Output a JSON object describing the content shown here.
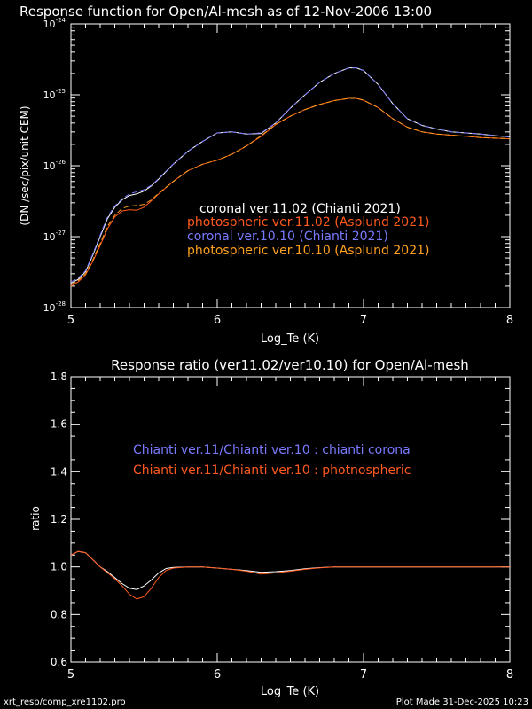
{
  "colors": {
    "background": "#000000",
    "axes": "#ffffff",
    "coronal_v11": "#ffffff",
    "photospheric_v11": "#ff5a1e",
    "coronal_v10": "#7a7aff",
    "photospheric_v10": "#ffa020",
    "ratio_corona": "#ffffff",
    "ratio_photo": "#ff5a1e"
  },
  "footer": {
    "left": "xrt_resp/comp_xre1102.pro",
    "right": "Plot Made 31-Dec-2025 10:23"
  },
  "chart_data": [
    {
      "type": "line",
      "title": "Response function for Open/Al-mesh as of 12-Nov-2006 13:00",
      "xlabel": "Log_Te (K)",
      "ylabel": "(DN /sec/pix/unit CEM)",
      "xlim": [
        5,
        8
      ],
      "ylim": [
        1e-28,
        1e-24
      ],
      "yscale": "log",
      "xticks": [
        "5",
        "6",
        "7",
        "8"
      ],
      "yticks": [
        {
          "base": "10",
          "exp": "-28"
        },
        {
          "base": "10",
          "exp": "-27"
        },
        {
          "base": "10",
          "exp": "-26"
        },
        {
          "base": "10",
          "exp": "-25"
        },
        {
          "base": "10",
          "exp": "-24"
        }
      ],
      "legend_placement": "center-right",
      "legend": [
        "coronal ver.11.02 (Chianti 2021)",
        "photospheric ver.11.02 (Asplund 2021)",
        "coronal ver.10.10 (Chianti 2021)",
        "photospheric ver.10.10 (Asplund 2021)"
      ],
      "series": [
        {
          "name": "coronal ver.11.02 (Chianti 2021)",
          "color": "#ffffff",
          "dash": "solid",
          "x": [
            5.0,
            5.05,
            5.1,
            5.15,
            5.2,
            5.25,
            5.3,
            5.35,
            5.4,
            5.45,
            5.5,
            5.55,
            5.6,
            5.7,
            5.8,
            5.9,
            6.0,
            6.1,
            6.2,
            6.3,
            6.4,
            6.5,
            6.6,
            6.7,
            6.8,
            6.9,
            6.95,
            7.0,
            7.1,
            7.2,
            7.3,
            7.4,
            7.5,
            7.6,
            7.7,
            7.8,
            7.9,
            8.0
          ],
          "y": [
            2.2e-28,
            2.5e-28,
            3.2e-28,
            5.5e-28,
            1e-27,
            1.8e-27,
            2.6e-27,
            3.3e-27,
            3.8e-27,
            4e-27,
            4.4e-27,
            5.2e-27,
            6.5e-27,
            1.05e-26,
            1.6e-26,
            2.2e-26,
            2.9e-26,
            3e-26,
            2.8e-26,
            2.85e-26,
            4e-26,
            6.5e-26,
            1e-25,
            1.5e-25,
            2e-25,
            2.4e-25,
            2.4e-25,
            2.2e-25,
            1.4e-25,
            7.5e-26,
            4.6e-26,
            3.7e-26,
            3.3e-26,
            3e-26,
            2.9e-26,
            2.8e-26,
            2.65e-26,
            2.55e-26
          ]
        },
        {
          "name": "photospheric ver.11.02 (Asplund 2021)",
          "color": "#ff5a1e",
          "dash": "solid",
          "x": [
            5.0,
            5.05,
            5.1,
            5.15,
            5.2,
            5.25,
            5.3,
            5.35,
            5.4,
            5.45,
            5.5,
            5.55,
            5.6,
            5.7,
            5.8,
            5.9,
            6.0,
            6.1,
            6.2,
            6.3,
            6.4,
            6.5,
            6.6,
            6.7,
            6.8,
            6.9,
            6.95,
            7.0,
            7.1,
            7.2,
            7.3,
            7.4,
            7.5,
            7.6,
            7.7,
            7.8,
            7.9,
            8.0
          ],
          "y": [
            2e-28,
            2.3e-28,
            2.9e-28,
            4.5e-28,
            7.5e-28,
            1.3e-27,
            1.9e-27,
            2.3e-27,
            2.4e-27,
            2.35e-27,
            2.6e-27,
            3.2e-27,
            4e-27,
            6e-27,
            8.5e-27,
            1.05e-26,
            1.2e-26,
            1.45e-26,
            1.9e-26,
            2.6e-26,
            3.8e-26,
            5e-26,
            6.2e-26,
            7.3e-26,
            8.3e-26,
            8.9e-26,
            8.9e-26,
            8.4e-26,
            6.6e-26,
            4.6e-26,
            3.5e-26,
            3e-26,
            2.8e-26,
            2.7e-26,
            2.6e-26,
            2.5e-26,
            2.45e-26,
            2.4e-26
          ]
        },
        {
          "name": "coronal ver.10.10 (Chianti 2021)",
          "color": "#7a7aff",
          "dash": "dashed",
          "x": [
            5.0,
            5.05,
            5.1,
            5.15,
            5.2,
            5.25,
            5.3,
            5.35,
            5.4,
            5.45,
            5.5,
            5.55,
            5.6,
            5.7,
            5.8,
            5.9,
            6.0,
            6.1,
            6.2,
            6.3,
            6.4,
            6.5,
            6.6,
            6.7,
            6.8,
            6.9,
            6.95,
            7.0,
            7.1,
            7.2,
            7.3,
            7.4,
            7.5,
            7.6,
            7.7,
            7.8,
            7.9,
            8.0
          ],
          "y": [
            2.3e-28,
            2.6e-28,
            3.3e-28,
            5.7e-28,
            1.05e-27,
            1.9e-27,
            2.7e-27,
            3.4e-27,
            4e-27,
            4.3e-27,
            4.6e-27,
            5.3e-27,
            6.6e-27,
            1.06e-26,
            1.6e-26,
            2.2e-26,
            2.9e-26,
            3e-26,
            2.8e-26,
            2.9e-26,
            4e-26,
            6.5e-26,
            1e-25,
            1.5e-25,
            2e-25,
            2.4e-25,
            2.4e-25,
            2.2e-25,
            1.4e-25,
            7.5e-26,
            4.6e-26,
            3.7e-26,
            3.3e-26,
            3e-26,
            2.9e-26,
            2.8e-26,
            2.65e-26,
            2.55e-26
          ]
        },
        {
          "name": "photospheric ver.10.10 (Asplund 2021)",
          "color": "#ffa020",
          "dash": "dashed",
          "x": [
            5.0,
            5.05,
            5.1,
            5.15,
            5.2,
            5.25,
            5.3,
            5.35,
            5.4,
            5.45,
            5.5,
            5.55,
            5.6,
            5.7,
            5.8,
            5.9,
            6.0,
            6.1,
            6.2,
            6.3,
            6.4,
            6.5,
            6.6,
            6.7,
            6.8,
            6.9,
            6.95,
            7.0,
            7.1,
            7.2,
            7.3,
            7.4,
            7.5,
            7.6,
            7.7,
            7.8,
            7.9,
            8.0
          ],
          "y": [
            2.1e-28,
            2.4e-28,
            3e-28,
            4.7e-28,
            8e-28,
            1.4e-27,
            2e-27,
            2.5e-27,
            2.7e-27,
            2.75e-27,
            2.85e-27,
            3.3e-27,
            4.1e-27,
            6e-27,
            8.5e-27,
            1.05e-26,
            1.2e-26,
            1.45e-26,
            1.9e-26,
            2.65e-26,
            3.85e-26,
            5e-26,
            6.2e-26,
            7.3e-26,
            8.3e-26,
            8.9e-26,
            8.9e-26,
            8.4e-26,
            6.6e-26,
            4.6e-26,
            3.5e-26,
            3e-26,
            2.8e-26,
            2.7e-26,
            2.6e-26,
            2.5e-26,
            2.45e-26,
            2.4e-26
          ]
        }
      ]
    },
    {
      "type": "line",
      "title": "Response ratio (ver11.02/ver10.10) for Open/Al-mesh",
      "xlabel": "Log_Te (K)",
      "ylabel": "ratio",
      "xlim": [
        5,
        8
      ],
      "ylim": [
        0.6,
        1.8
      ],
      "xticks": [
        "5",
        "6",
        "7",
        "8"
      ],
      "yticks": [
        "0.6",
        "0.8",
        "1.0",
        "1.2",
        "1.4",
        "1.6",
        "1.8"
      ],
      "legend_placement": "upper-center",
      "legend": [
        "Chianti ver.11/Chianti ver.10 : chianti corona",
        "Chianti ver.11/Chianti ver.10 : photnospheric"
      ],
      "series": [
        {
          "name": "Chianti ver.11/Chianti ver.10 : chianti corona",
          "color": "#ffffff",
          "x": [
            5.0,
            5.05,
            5.1,
            5.15,
            5.2,
            5.25,
            5.3,
            5.35,
            5.4,
            5.45,
            5.5,
            5.55,
            5.6,
            5.65,
            5.7,
            5.8,
            5.9,
            6.0,
            6.1,
            6.2,
            6.3,
            6.4,
            6.5,
            6.6,
            6.7,
            6.8,
            7.0,
            7.5,
            8.0
          ],
          "y": [
            1.05,
            1.065,
            1.06,
            1.03,
            1.0,
            0.98,
            0.955,
            0.93,
            0.91,
            0.905,
            0.92,
            0.945,
            0.975,
            0.993,
            0.998,
            1.0,
            1.0,
            0.995,
            0.99,
            0.985,
            0.977,
            0.98,
            0.985,
            0.992,
            0.997,
            1.0,
            1.0,
            1.0,
            1.0
          ]
        },
        {
          "name": "Chianti ver.11/Chianti ver.10 : photnospheric",
          "color": "#ff5a1e",
          "x": [
            5.0,
            5.05,
            5.1,
            5.15,
            5.2,
            5.25,
            5.3,
            5.35,
            5.4,
            5.45,
            5.5,
            5.55,
            5.6,
            5.65,
            5.7,
            5.8,
            5.9,
            6.0,
            6.1,
            6.2,
            6.3,
            6.4,
            6.5,
            6.6,
            6.7,
            6.8,
            7.0,
            7.5,
            8.0
          ],
          "y": [
            1.05,
            1.065,
            1.06,
            1.03,
            1.0,
            0.975,
            0.95,
            0.92,
            0.885,
            0.865,
            0.875,
            0.91,
            0.955,
            0.985,
            0.995,
            1.0,
            1.0,
            0.995,
            0.99,
            0.982,
            0.97,
            0.975,
            0.982,
            0.99,
            0.996,
            1.0,
            1.0,
            1.0,
            1.0
          ]
        }
      ]
    }
  ]
}
